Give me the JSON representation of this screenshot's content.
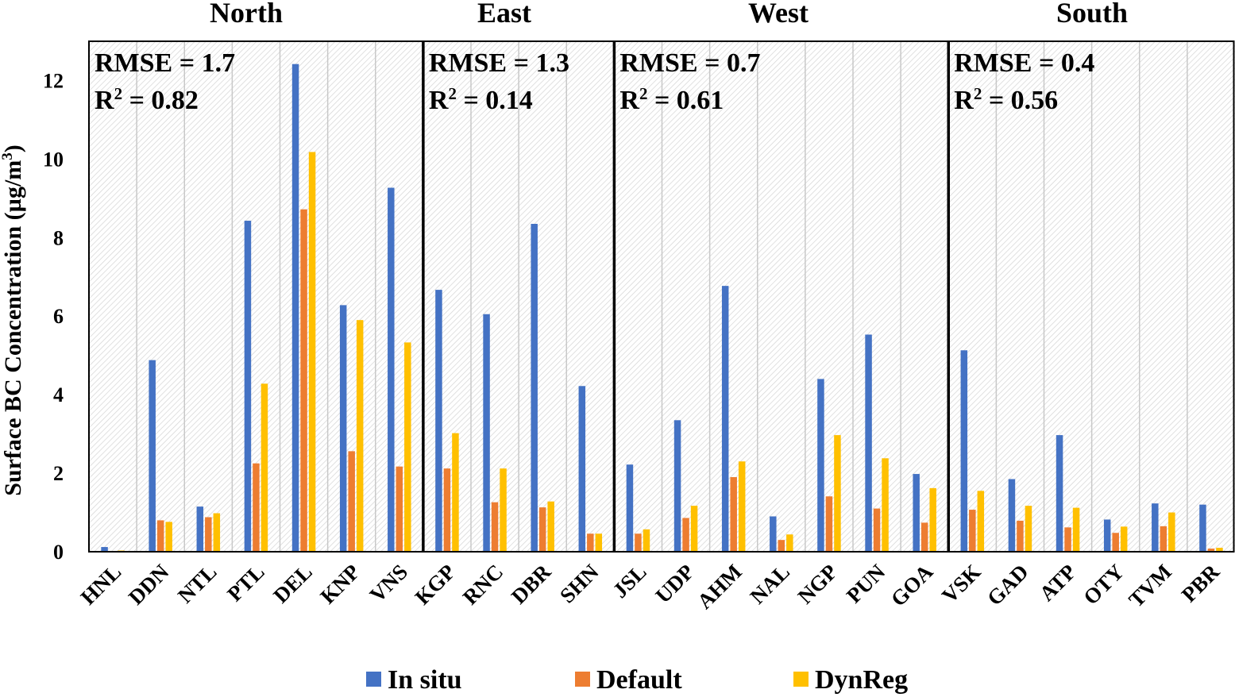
{
  "chart_data": {
    "type": "bar",
    "ylabel": "Surface BC Concentration (µg/m³)",
    "ylabel_base": "Surface BC Concentration (µg/m",
    "ylabel_sup": "3",
    "ylabel_end": ")",
    "ylim": [
      0,
      13
    ],
    "yticks": [
      0,
      2,
      4,
      6,
      8,
      10,
      12
    ],
    "grid": true,
    "legend_position": "bottom",
    "categories": [
      "HNL",
      "DDN",
      "NTL",
      "PTL",
      "DEL",
      "KNP",
      "VNS",
      "KGP",
      "RNC",
      "DBR",
      "SHN",
      "JSL",
      "UDP",
      "AHM",
      "NAL",
      "NGP",
      "PUN",
      "GOA",
      "VSK",
      "GAD",
      "ATP",
      "OTY",
      "TVM",
      "PBR"
    ],
    "series": [
      {
        "name": "In situ",
        "color": "#4472c4",
        "values": [
          0.12,
          4.88,
          1.15,
          8.43,
          12.42,
          6.28,
          9.27,
          6.67,
          6.05,
          8.35,
          4.22,
          2.22,
          3.35,
          6.77,
          0.9,
          4.4,
          5.53,
          1.98,
          5.13,
          1.85,
          2.97,
          0.82,
          1.23,
          1.2
        ]
      },
      {
        "name": "Default",
        "color": "#ed7d31",
        "values": [
          0.0,
          0.8,
          0.88,
          2.25,
          8.72,
          2.56,
          2.17,
          2.12,
          1.26,
          1.13,
          0.46,
          0.46,
          0.86,
          1.9,
          0.3,
          1.41,
          1.1,
          0.74,
          1.07,
          0.79,
          0.62,
          0.48,
          0.65,
          0.08
        ]
      },
      {
        "name": "DynReg",
        "color": "#ffc000",
        "values": [
          0.03,
          0.76,
          0.98,
          4.28,
          10.18,
          5.9,
          5.33,
          3.02,
          2.12,
          1.28,
          0.46,
          0.57,
          1.17,
          2.3,
          0.44,
          2.97,
          2.38,
          1.62,
          1.55,
          1.17,
          1.12,
          0.64,
          1.0,
          0.1
        ]
      }
    ],
    "regions": [
      {
        "name": "North",
        "start": 0,
        "end": 6,
        "rmse_label": "RMSE = 1.7",
        "r2_prefix": "R",
        "r2_sup": "2",
        "r2_value": " = 0.82"
      },
      {
        "name": "East",
        "start": 7,
        "end": 10,
        "rmse_label": "RMSE = 1.3",
        "r2_prefix": "R",
        "r2_sup": "2",
        "r2_value": " = 0.14"
      },
      {
        "name": "West",
        "start": 11,
        "end": 17,
        "rmse_label": "RMSE = 0.7",
        "r2_prefix": "R",
        "r2_sup": "2",
        "r2_value": " = 0.61"
      },
      {
        "name": "South",
        "start": 18,
        "end": 23,
        "rmse_label": "RMSE = 0.4",
        "r2_prefix": "R",
        "r2_sup": "2",
        "r2_value": " = 0.56"
      }
    ]
  }
}
